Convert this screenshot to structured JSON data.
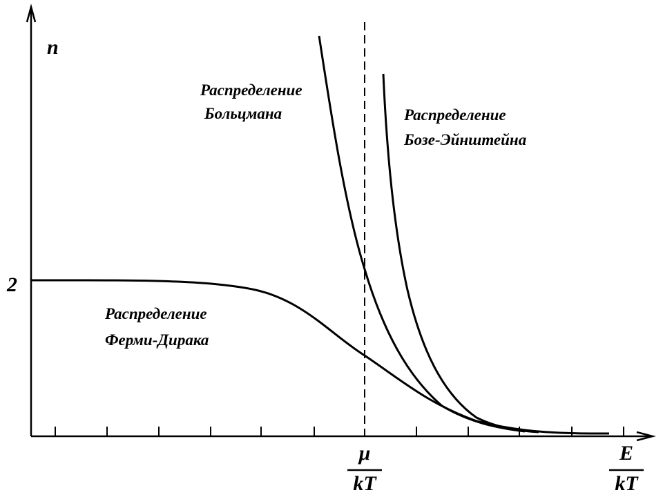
{
  "axes": {
    "y_label": "n",
    "y_tick": "2",
    "x_marks": [
      {
        "numerator": "μ",
        "denominator": "kT"
      },
      {
        "numerator": "E",
        "denominator": "kT"
      }
    ]
  },
  "curves": [
    {
      "label": [
        "Распределение",
        "Больцмана"
      ]
    },
    {
      "label": [
        "Распределение",
        "Бозе-Эйнштейна"
      ]
    },
    {
      "label": [
        "Распределение",
        "Ферми-Дирака"
      ]
    }
  ]
}
